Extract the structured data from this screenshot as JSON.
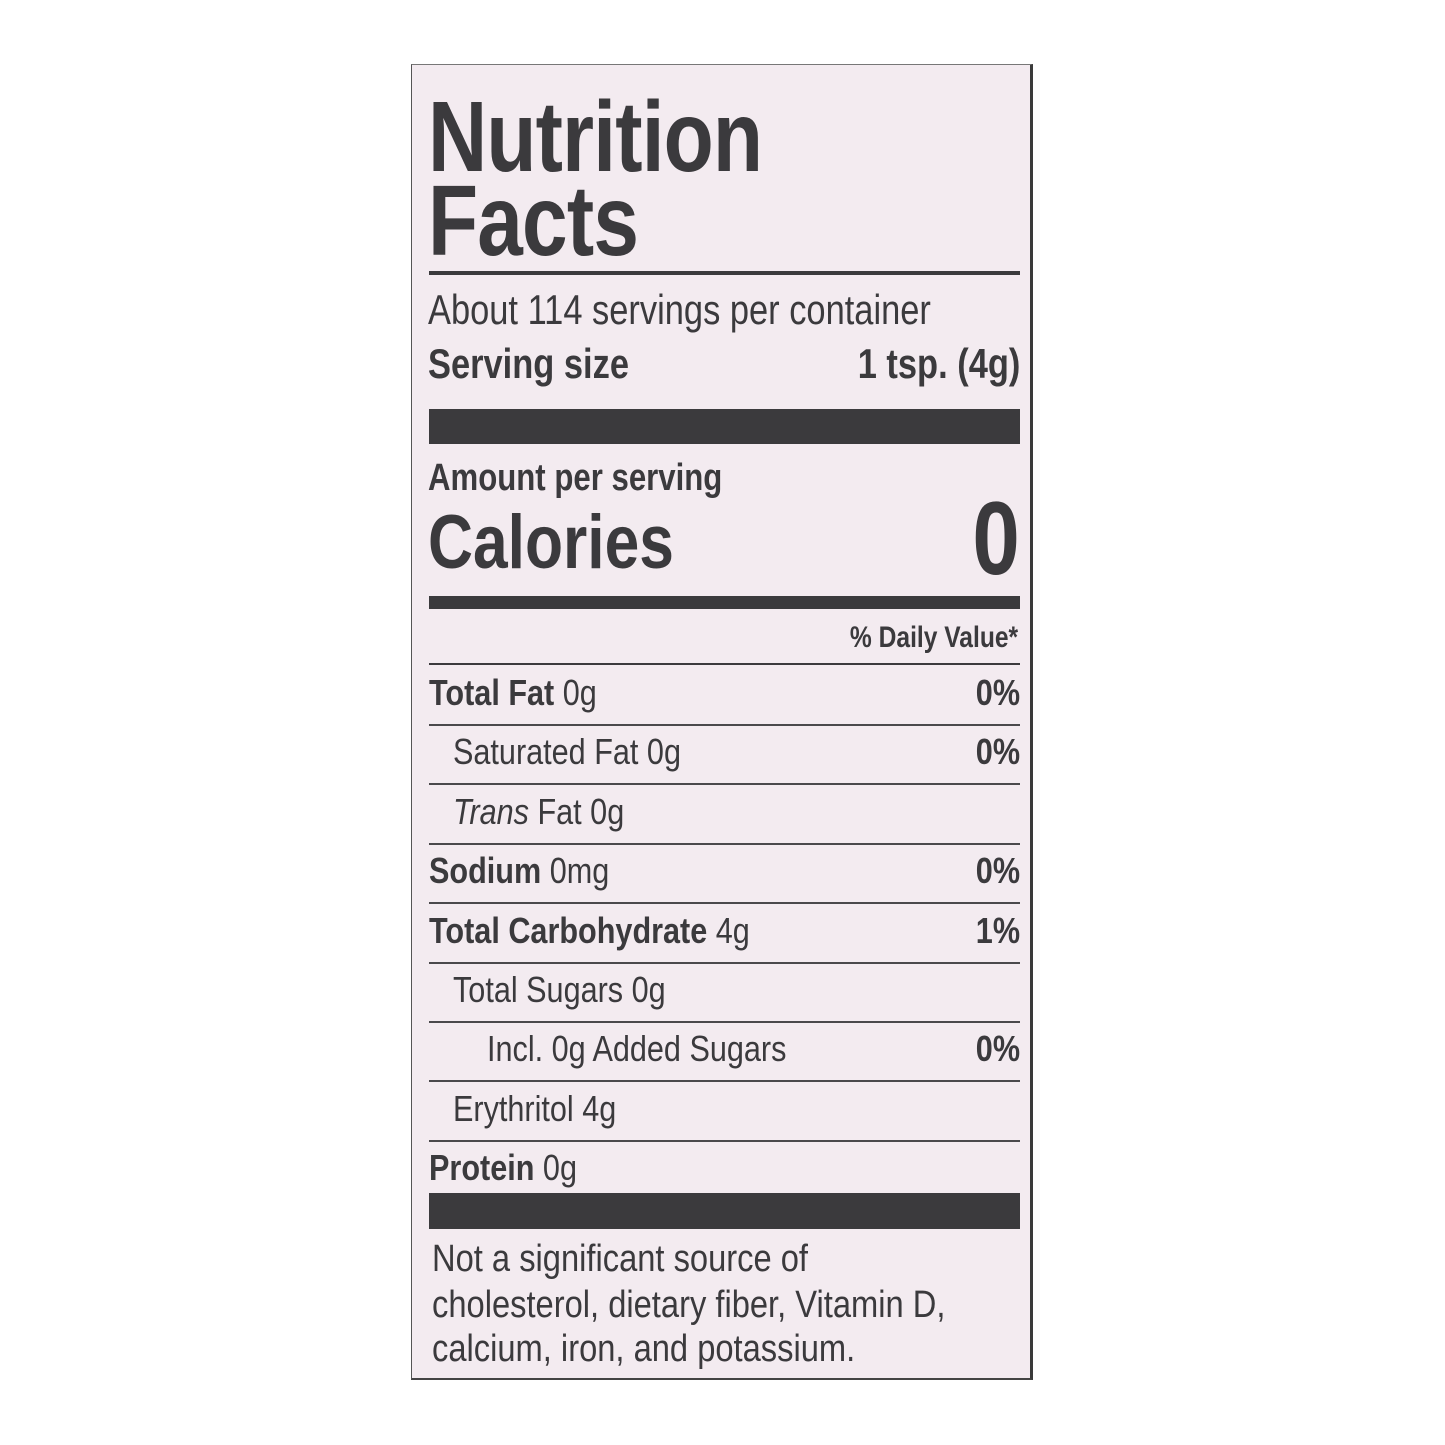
{
  "label": {
    "title_line1": "Nutrition",
    "title_line2": "Facts",
    "servings_per_container": "About 114 servings per container",
    "serving_size_label": "Serving size",
    "serving_size_value": "1 tsp. (4g)",
    "amount_per_serving": "Amount per serving",
    "calories_label": "Calories",
    "calories_value": "0",
    "daily_value_header": "% Daily Value*",
    "rows": [
      {
        "name": "Total Fat",
        "amount": "0g",
        "dv": "0%",
        "bold": true,
        "indent": 0
      },
      {
        "name": "Saturated Fat",
        "amount": "0g",
        "dv": "0%",
        "bold": false,
        "indent": 1
      },
      {
        "name": "Trans",
        "name_suffix": " Fat",
        "amount": "0g",
        "dv": "",
        "bold": false,
        "indent": 1,
        "italic": true
      },
      {
        "name": "Sodium",
        "amount": "0mg",
        "dv": "0%",
        "bold": true,
        "indent": 0
      },
      {
        "name": "Total Carbohydrate",
        "amount": "4g",
        "dv": "1%",
        "bold": true,
        "indent": 0
      },
      {
        "name": "Total Sugars",
        "amount": "0g",
        "dv": "",
        "bold": false,
        "indent": 1
      },
      {
        "name": "Incl. 0g Added Sugars",
        "amount": "",
        "dv": "0%",
        "bold": false,
        "indent": 2
      },
      {
        "name": "Erythritol",
        "amount": "4g",
        "dv": "",
        "bold": false,
        "indent": 1
      },
      {
        "name": "Protein",
        "amount": "0g",
        "dv": "",
        "bold": true,
        "indent": 0
      }
    ],
    "footnote_lines": [
      "Not a significant source of",
      "cholesterol, dietary fiber, Vitamin D,",
      "calcium, iron, and potassium."
    ]
  },
  "colors": {
    "ink": "#3b3a3d",
    "background": "#f3ebf0"
  }
}
